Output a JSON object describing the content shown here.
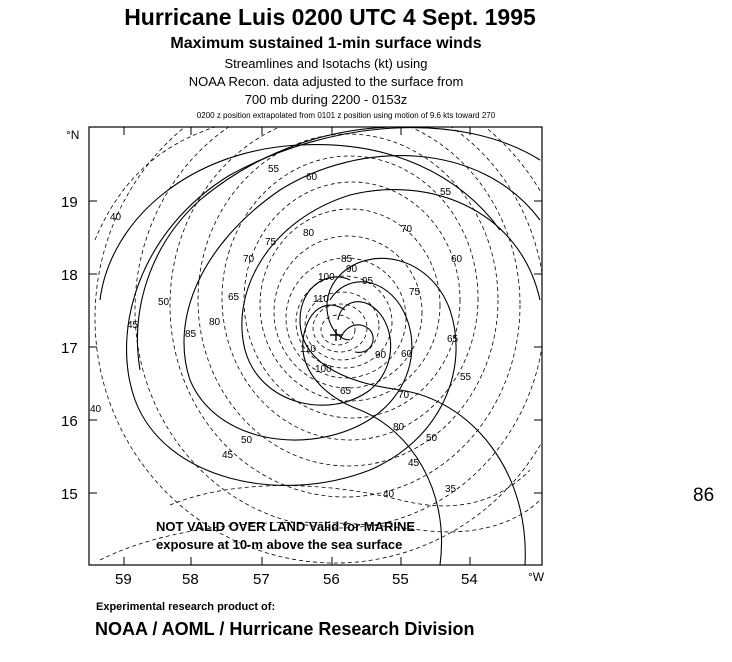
{
  "header": {
    "title": "Hurricane Luis 0200 UTC  4 Sept. 1995",
    "subtitle": "Maximum sustained 1-min surface winds",
    "line3": "Streamlines and Isotachs (kt) using",
    "line4": "NOAA Recon. data adjusted to the surface from",
    "line5": "700 mb during 2200 - 0153z",
    "note": "0200 z position extrapolated from 0101 z position using motion of 9.6 kts toward 270"
  },
  "axes": {
    "lat_ticks": [
      "19",
      "18",
      "17",
      "16",
      "15"
    ],
    "lon_ticks": [
      "59",
      "58",
      "57",
      "56",
      "55",
      "54"
    ],
    "lat_unit": "°N",
    "lon_unit": "°W"
  },
  "isotach_labels": [
    "40",
    "45",
    "50",
    "55",
    "60",
    "65",
    "70",
    "75",
    "80",
    "85",
    "90",
    "95",
    "100",
    "110",
    "110",
    "100",
    "90",
    "80",
    "70",
    "65",
    "60",
    "55",
    "50",
    "45",
    "40",
    "35",
    "40",
    "45",
    "50",
    "55",
    "60",
    "65",
    "70",
    "75",
    "80",
    "85"
  ],
  "map_note": {
    "line1": "NOT VALID OVER LAND  Valid for MARINE",
    "line2": "exposure at 10-m above the sea surface"
  },
  "side_label": "86",
  "footer": {
    "credit_small": "Experimental research product of:",
    "credit_large": "NOAA / AOML / Hurricane Research Division"
  }
}
